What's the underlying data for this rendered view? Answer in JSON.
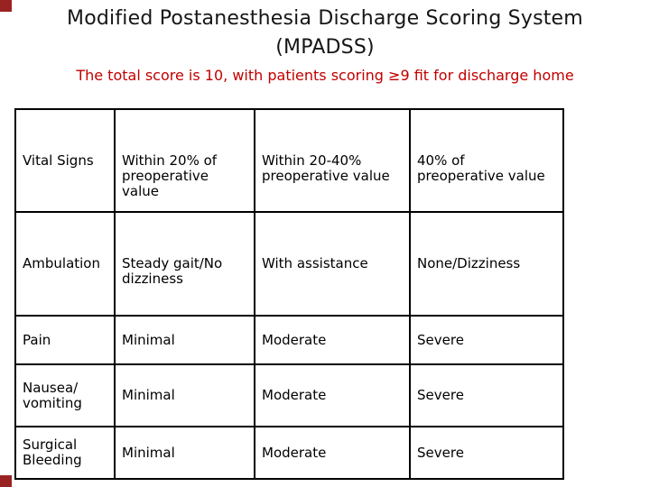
{
  "slide": {
    "title": "Modified Postanesthesia Discharge Scoring System\n(MPADSS)",
    "subtitle": "The total score is 10, with patients scoring ≥9 fit for discharge home"
  },
  "colors": {
    "background": "#FFFFFF",
    "title_text": "#161616",
    "subtitle_text": "#C00000",
    "table_border": "#000000",
    "table_text": "#000000",
    "corner_accent": "#992222"
  },
  "decor": {
    "corner_squares": [
      "top-left",
      "bottom-left"
    ]
  },
  "table": {
    "rows": [
      {
        "cells": [
          "Vital Signs",
          "Within 20% of\npreoperative\nvalue",
          "Within 20-40%\npreoperative value",
          "40% of\npreoperative value"
        ],
        "text_anchor": "firstline"
      },
      {
        "cells": [
          "Ambulation",
          "Steady gait/No\ndizziness",
          "With assistance",
          "None/Dizziness"
        ],
        "text_anchor": "firstline"
      },
      {
        "cells": [
          "Pain",
          "Minimal",
          "Moderate",
          "Severe"
        ],
        "text_anchor": "middle"
      },
      {
        "cells": [
          "Nausea/\nvomiting",
          "Minimal",
          "Moderate",
          "Severe"
        ],
        "text_anchor": "middle"
      },
      {
        "cells": [
          "Surgical\nBleeding",
          "Minimal",
          "Moderate",
          "Severe"
        ],
        "text_anchor": "middle"
      }
    ]
  }
}
